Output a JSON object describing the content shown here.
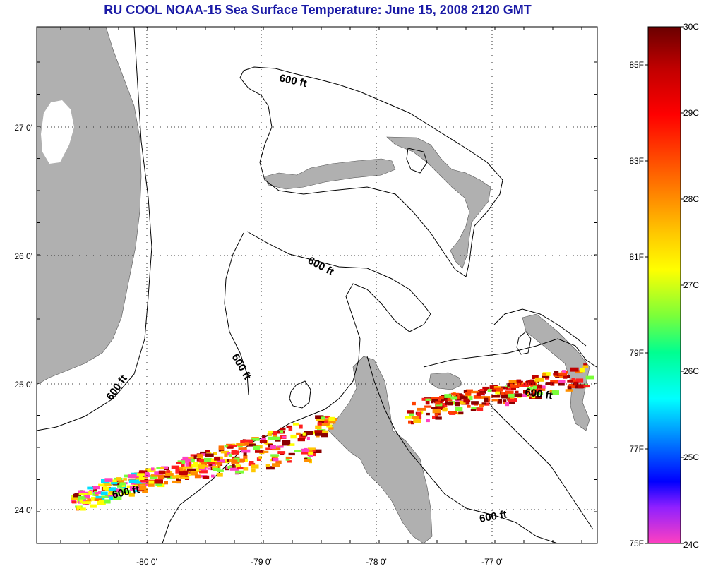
{
  "title": "RU COOL  NOAA-15  Sea Surface Temperature:  June 15, 2008 2120 GMT",
  "map": {
    "lat_labels": [
      "27 0'",
      "26 0'",
      "25 0'",
      "24 0'"
    ],
    "lon_labels": [
      "-80 0'",
      "-79 0'",
      "-78 0'",
      "-77 0'"
    ],
    "contour_label": "600 ft",
    "colors": {
      "land": "#b0b0b0",
      "contour": "#000000",
      "grid": "#000000",
      "title": "#1a1aa6"
    }
  },
  "colorbar": {
    "celsius_labels": [
      "30C",
      "29C",
      "28C",
      "27C",
      "26C",
      "25C",
      "24C"
    ],
    "fahrenheit_labels": [
      "85F",
      "83F",
      "81F",
      "79F",
      "77F",
      "75F"
    ],
    "range_c": [
      24,
      30
    ]
  }
}
